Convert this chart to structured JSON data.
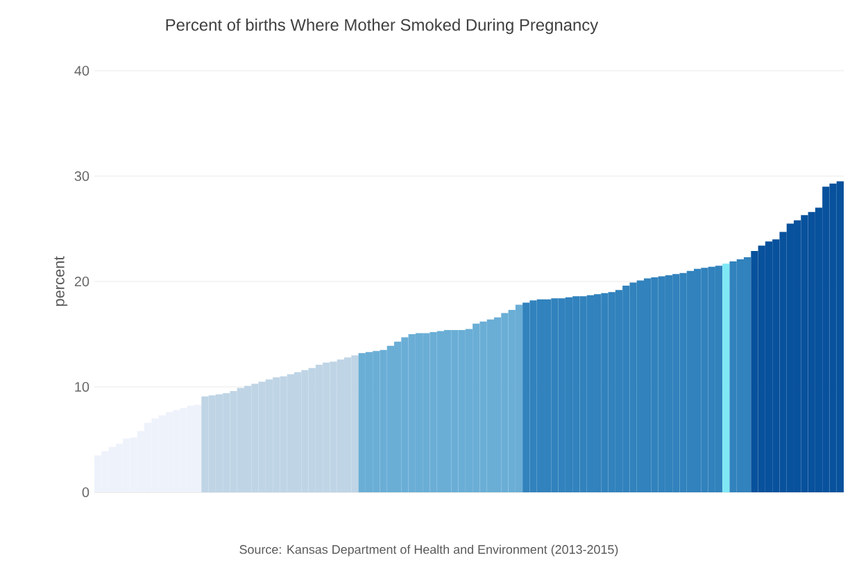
{
  "chart_data": {
    "type": "bar",
    "title": "Percent of births Where Mother Smoked During Pregnancy",
    "ylabel": "percent",
    "annotations": [
      "Source: Kansas Department of Health and Environment (2013-2015)"
    ],
    "categories": [
      null,
      null,
      null,
      null,
      null,
      null,
      null,
      null,
      null,
      null,
      null,
      null,
      null,
      null,
      null,
      null,
      null,
      null,
      null,
      null,
      null,
      null,
      null,
      null,
      null,
      null,
      null,
      null,
      null,
      null,
      null,
      null,
      null,
      null,
      null,
      null,
      null,
      null,
      null,
      null,
      null,
      null,
      null,
      null,
      null,
      null,
      null,
      null,
      null,
      null,
      null,
      null,
      null,
      null,
      null,
      null,
      null,
      null,
      null,
      null,
      null,
      null,
      null,
      null,
      null,
      null,
      null,
      null,
      null,
      null,
      null,
      null,
      null,
      null,
      null,
      null,
      null,
      null,
      null,
      null,
      null,
      null,
      null,
      null,
      null,
      null,
      null,
      null,
      null,
      null,
      null,
      null,
      null,
      null,
      null,
      null,
      null,
      null,
      null,
      null,
      null,
      null,
      null,
      null,
      null
    ],
    "values": [
      3.5,
      3.9,
      4.3,
      4.6,
      5.1,
      5.2,
      5.8,
      6.6,
      7.0,
      7.3,
      7.6,
      7.8,
      8.0,
      8.2,
      8.3,
      9.1,
      9.2,
      9.3,
      9.4,
      9.6,
      9.9,
      10.1,
      10.3,
      10.5,
      10.7,
      10.9,
      11.0,
      11.2,
      11.4,
      11.6,
      11.8,
      12.1,
      12.3,
      12.4,
      12.6,
      12.8,
      13.0,
      13.2,
      13.3,
      13.4,
      13.5,
      13.9,
      14.3,
      14.7,
      15.0,
      15.1,
      15.1,
      15.2,
      15.3,
      15.4,
      15.4,
      15.4,
      15.5,
      16.0,
      16.2,
      16.4,
      16.6,
      17.0,
      17.3,
      17.8,
      18.0,
      18.2,
      18.3,
      18.3,
      18.4,
      18.4,
      18.5,
      18.6,
      18.6,
      18.7,
      18.8,
      18.9,
      19.0,
      19.2,
      19.6,
      19.9,
      20.1,
      20.3,
      20.4,
      20.5,
      20.6,
      20.7,
      20.8,
      21.0,
      21.2,
      21.3,
      21.4,
      21.5,
      21.7,
      21.9,
      22.1,
      22.3,
      22.9,
      23.4,
      23.8,
      24.0,
      24.7,
      25.5,
      25.8,
      26.3,
      26.6,
      27.0,
      29.0,
      29.3,
      29.5
    ],
    "colors": [
      "#eef2fb",
      "#eef2fb",
      "#eef2fb",
      "#eef2fb",
      "#eef2fb",
      "#eef2fb",
      "#eef2fb",
      "#eef2fb",
      "#eef2fb",
      "#eef2fb",
      "#eef2fb",
      "#eef2fb",
      "#eef2fb",
      "#eef2fb",
      "#eef2fb",
      "#bfd5e6",
      "#bfd5e6",
      "#bfd5e6",
      "#bfd5e6",
      "#bfd5e6",
      "#bfd5e6",
      "#bfd5e6",
      "#bfd5e6",
      "#bfd5e6",
      "#bfd5e6",
      "#bfd5e6",
      "#bfd5e6",
      "#bfd5e6",
      "#bfd5e6",
      "#bfd5e6",
      "#bfd5e6",
      "#bfd5e6",
      "#bfd5e6",
      "#bfd5e6",
      "#bfd5e6",
      "#bfd5e6",
      "#bfd5e6",
      "#6aaed6",
      "#6aaed6",
      "#6aaed6",
      "#6aaed6",
      "#6aaed6",
      "#6aaed6",
      "#6aaed6",
      "#6aaed6",
      "#6aaed6",
      "#6aaed6",
      "#6aaed6",
      "#6aaed6",
      "#6aaed6",
      "#6aaed6",
      "#6aaed6",
      "#6aaed6",
      "#6aaed6",
      "#6aaed6",
      "#6aaed6",
      "#6aaed6",
      "#6aaed6",
      "#6aaed6",
      "#6aaed6",
      "#3182bd",
      "#3182bd",
      "#3182bd",
      "#3182bd",
      "#3182bd",
      "#3182bd",
      "#3182bd",
      "#3182bd",
      "#3182bd",
      "#3182bd",
      "#3182bd",
      "#3182bd",
      "#3182bd",
      "#3182bd",
      "#3182bd",
      "#3182bd",
      "#3182bd",
      "#3182bd",
      "#3182bd",
      "#3182bd",
      "#3182bd",
      "#3182bd",
      "#3182bd",
      "#3182bd",
      "#3182bd",
      "#3182bd",
      "#3182bd",
      "#3182bd",
      "#7fe8f5",
      "#3182bd",
      "#3182bd",
      "#3182bd",
      "#08519c",
      "#08519c",
      "#08519c",
      "#08519c",
      "#08519c",
      "#08519c",
      "#08519c",
      "#08519c",
      "#08519c",
      "#08519c",
      "#08519c",
      "#08519c",
      "#08519c"
    ],
    "ylim": [
      0,
      40
    ],
    "yticks": [
      0,
      10,
      20,
      30,
      40
    ],
    "grid": "y"
  }
}
